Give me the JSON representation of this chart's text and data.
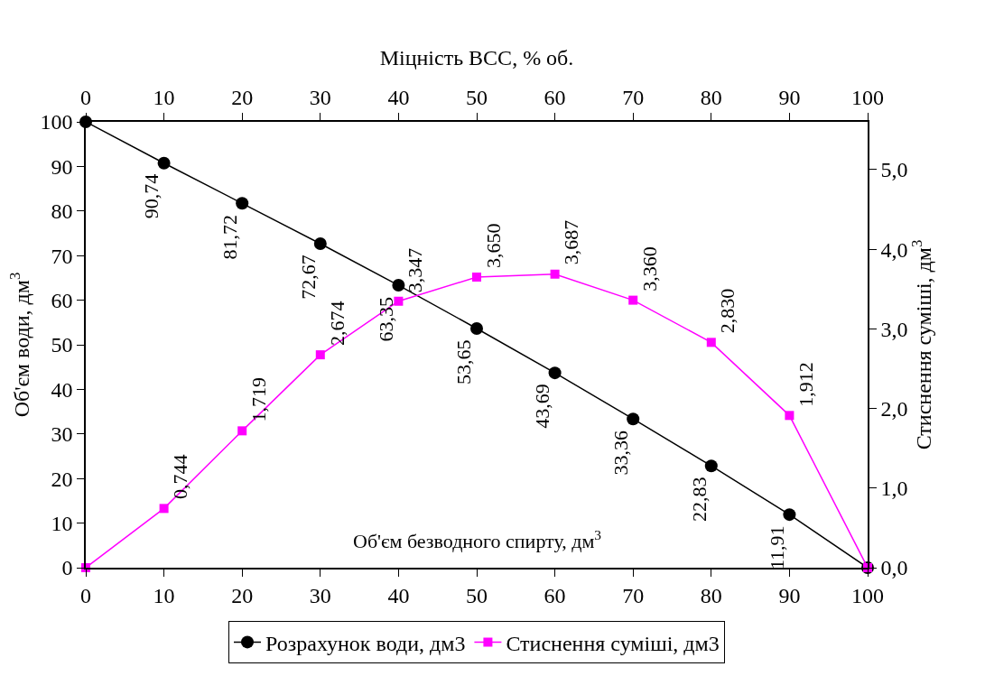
{
  "chart_data": {
    "type": "line",
    "xlabel": "Об'єм безводного спирту, дм$^{3}$",
    "x2label": "Міцність ВСС, % об.",
    "ylabel": "Об'єм води, дм$^{3}$",
    "y2label": "Стиснення суміші, дм$^{3}$",
    "x": [
      0,
      10,
      20,
      30,
      40,
      50,
      60,
      70,
      80,
      90,
      100
    ],
    "xlim": [
      0,
      100
    ],
    "xticks": [
      0,
      10,
      20,
      30,
      40,
      50,
      60,
      70,
      80,
      90,
      100
    ],
    "x2lim": [
      0,
      100
    ],
    "x2ticks": [
      0,
      10,
      20,
      30,
      40,
      50,
      60,
      70,
      80,
      90,
      100
    ],
    "ylim": [
      0,
      100
    ],
    "yticks": [
      0,
      10,
      20,
      30,
      40,
      50,
      60,
      70,
      80,
      90,
      100
    ],
    "y2lim": [
      0,
      5.6
    ],
    "y2ticks": [
      {
        "value": 0,
        "label": "0,0"
      },
      {
        "value": 1,
        "label": "1,0"
      },
      {
        "value": 2,
        "label": "2,0"
      },
      {
        "value": 3,
        "label": "3,0"
      },
      {
        "value": 4,
        "label": "4,0"
      },
      {
        "value": 5,
        "label": "5,0"
      }
    ],
    "series": [
      {
        "name": "Розрахунок води, дм3",
        "color": "#000000",
        "marker": "circle",
        "values": [
          100,
          90.74,
          81.72,
          72.67,
          63.35,
          53.65,
          43.69,
          33.36,
          22.83,
          11.91,
          0
        ],
        "value_labels": [
          null,
          "90,74",
          "81,72",
          "72,67",
          "63,35",
          "53,65",
          "43,69",
          "33,36",
          "22,83",
          "11,91",
          null
        ]
      },
      {
        "name": "Стиснення суміші, дм3",
        "color": "#ff00ff",
        "marker": "square",
        "axis": "y2",
        "values": [
          0,
          0.744,
          1.719,
          2.674,
          3.347,
          3.65,
          3.687,
          3.36,
          2.83,
          1.912,
          0
        ],
        "value_labels": [
          null,
          "0,744",
          "1,719",
          "2,674",
          "3,347",
          "3,650",
          "3,687",
          "3,360",
          "2,830",
          "1,912",
          null
        ]
      }
    ],
    "legend": "bottom",
    "line_style": "solid"
  }
}
